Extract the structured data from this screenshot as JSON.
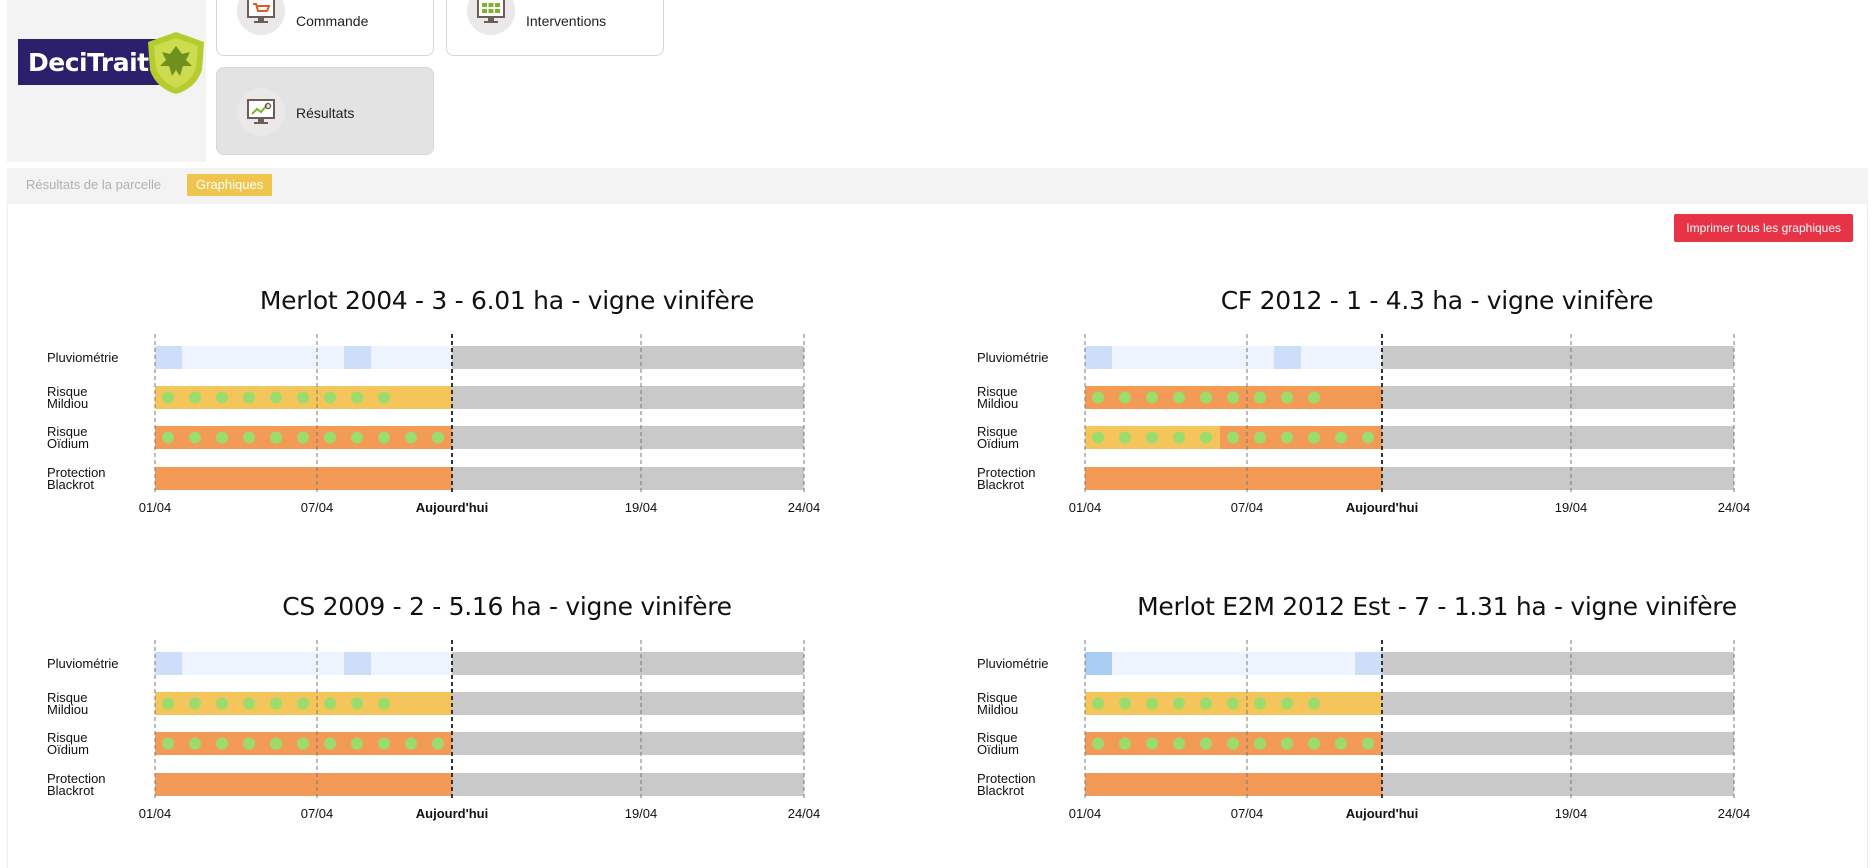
{
  "logo": {
    "text": "DeciTrait"
  },
  "menu": [
    {
      "label": "Commande",
      "icon": "cart-monitor-icon",
      "active": false
    },
    {
      "label": "Interventions",
      "icon": "grid-monitor-icon",
      "active": false
    },
    {
      "label": "Résultats",
      "icon": "chart-monitor-icon",
      "active": true
    }
  ],
  "tabs": [
    {
      "label": "Résultats de la parcelle",
      "active": false
    },
    {
      "label": "Graphiques",
      "active": true
    }
  ],
  "print_label": "Imprimer tous les graphiques",
  "colors": {
    "rain_light": "#eef4fd",
    "rain_mid": "#cddff8",
    "rain_dark": "#a9ccf2",
    "yellow": "#f4c55a",
    "orange": "#f39a56",
    "gray": "#c9c9c9",
    "dot": "#9bdc6d",
    "print": "#e63345"
  },
  "chart_data": [
    {
      "type": "timeline",
      "title": "Merlot 2004 - 3 - 6.01 ha - vigne vinifère",
      "x_ticks": [
        "01/04",
        "07/04",
        "Aujourd'hui",
        "19/04",
        "24/04"
      ],
      "rows": [
        {
          "label": [
            "Pluviométrie"
          ],
          "segments": [
            {
              "from": 1,
              "to": 2,
              "level": "mid"
            },
            {
              "from": 2,
              "to": 8,
              "level": "light"
            },
            {
              "from": 8,
              "to": 9,
              "level": "mid"
            },
            {
              "from": 9,
              "to": 12,
              "level": "light"
            }
          ]
        },
        {
          "label": [
            "Risque",
            "Mildiou"
          ],
          "segments": [
            {
              "from": 1,
              "to": 12,
              "level": "yellow"
            }
          ],
          "dots": 9
        },
        {
          "label": [
            "Risque",
            "Oïdium"
          ],
          "segments": [
            {
              "from": 1,
              "to": 12,
              "level": "orange"
            }
          ],
          "dots": 11
        },
        {
          "label": [
            "Protection",
            "Blackrot"
          ],
          "segments": [
            {
              "from": 1,
              "to": 12,
              "level": "orange"
            }
          ],
          "dots": 0
        }
      ]
    },
    {
      "type": "timeline",
      "title": "CF 2012 - 1 - 4.3 ha - vigne vinifère",
      "x_ticks": [
        "01/04",
        "07/04",
        "Aujourd'hui",
        "19/04",
        "24/04"
      ],
      "rows": [
        {
          "label": [
            "Pluviométrie"
          ],
          "segments": [
            {
              "from": 1,
              "to": 2,
              "level": "mid"
            },
            {
              "from": 2,
              "to": 8,
              "level": "light"
            },
            {
              "from": 8,
              "to": 9,
              "level": "mid"
            },
            {
              "from": 9,
              "to": 12,
              "level": "light"
            }
          ]
        },
        {
          "label": [
            "Risque",
            "Mildiou"
          ],
          "segments": [
            {
              "from": 1,
              "to": 12,
              "level": "orange"
            }
          ],
          "dots": 9
        },
        {
          "label": [
            "Risque",
            "Oïdium"
          ],
          "segments": [
            {
              "from": 1,
              "to": 6,
              "level": "yellow"
            },
            {
              "from": 6,
              "to": 12,
              "level": "orange"
            }
          ],
          "dots": 11
        },
        {
          "label": [
            "Protection",
            "Blackrot"
          ],
          "segments": [
            {
              "from": 1,
              "to": 12,
              "level": "orange"
            }
          ],
          "dots": 0
        }
      ]
    },
    {
      "type": "timeline",
      "title": "CS 2009 - 2 - 5.16 ha - vigne vinifère",
      "x_ticks": [
        "01/04",
        "07/04",
        "Aujourd'hui",
        "19/04",
        "24/04"
      ],
      "rows": [
        {
          "label": [
            "Pluviométrie"
          ],
          "segments": [
            {
              "from": 1,
              "to": 2,
              "level": "mid"
            },
            {
              "from": 2,
              "to": 8,
              "level": "light"
            },
            {
              "from": 8,
              "to": 9,
              "level": "mid"
            },
            {
              "from": 9,
              "to": 12,
              "level": "light"
            }
          ]
        },
        {
          "label": [
            "Risque",
            "Mildiou"
          ],
          "segments": [
            {
              "from": 1,
              "to": 12,
              "level": "yellow"
            }
          ],
          "dots": 9
        },
        {
          "label": [
            "Risque",
            "Oïdium"
          ],
          "segments": [
            {
              "from": 1,
              "to": 12,
              "level": "orange"
            }
          ],
          "dots": 11
        },
        {
          "label": [
            "Protection",
            "Blackrot"
          ],
          "segments": [
            {
              "from": 1,
              "to": 12,
              "level": "orange"
            }
          ],
          "dots": 0
        }
      ]
    },
    {
      "type": "timeline",
      "title": "Merlot E2M 2012 Est - 7 - 1.31 ha - vigne vinifère",
      "x_ticks": [
        "01/04",
        "07/04",
        "Aujourd'hui",
        "19/04",
        "24/04"
      ],
      "rows": [
        {
          "label": [
            "Pluviométrie"
          ],
          "segments": [
            {
              "from": 1,
              "to": 2,
              "level": "dark"
            },
            {
              "from": 2,
              "to": 11,
              "level": "light"
            },
            {
              "from": 11,
              "to": 12,
              "level": "mid"
            }
          ]
        },
        {
          "label": [
            "Risque",
            "Mildiou"
          ],
          "segments": [
            {
              "from": 1,
              "to": 12,
              "level": "yellow"
            }
          ],
          "dots": 9
        },
        {
          "label": [
            "Risque",
            "Oïdium"
          ],
          "segments": [
            {
              "from": 1,
              "to": 12,
              "level": "orange"
            }
          ],
          "dots": 11
        },
        {
          "label": [
            "Protection",
            "Blackrot"
          ],
          "segments": [
            {
              "from": 1,
              "to": 12,
              "level": "orange"
            }
          ],
          "dots": 0
        }
      ]
    }
  ]
}
